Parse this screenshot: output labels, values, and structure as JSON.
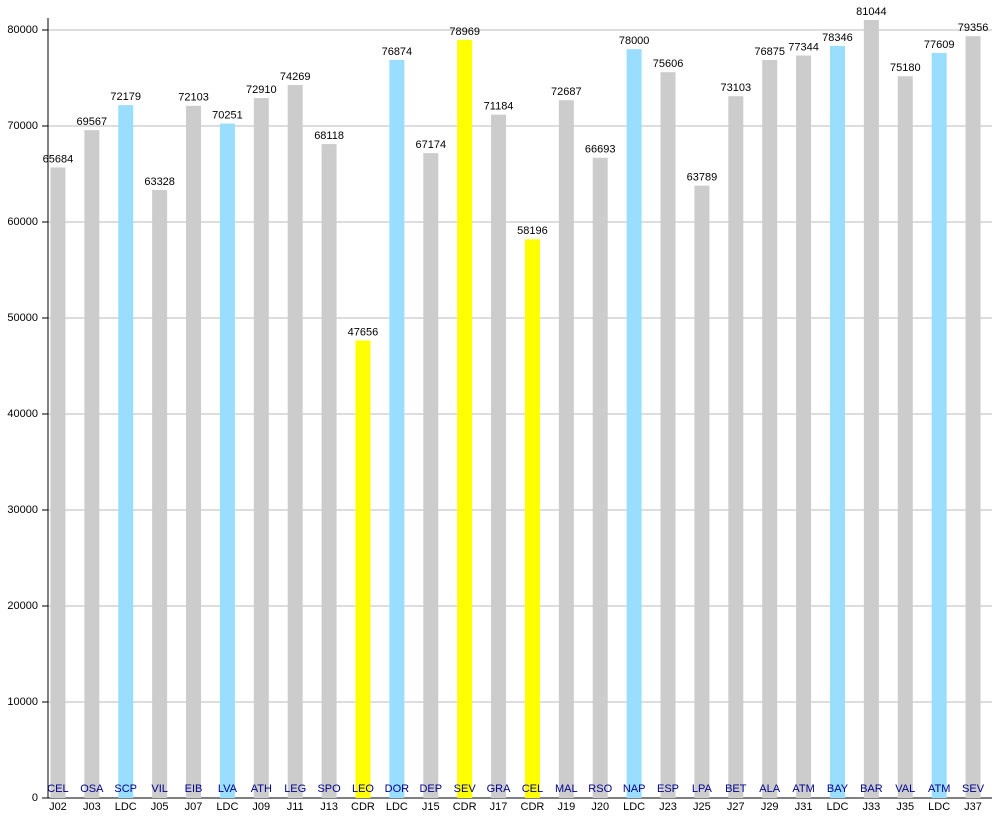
{
  "chart_data": {
    "type": "bar",
    "categories": [
      "J02",
      "J03",
      "LDC",
      "J05",
      "J07",
      "LDC",
      "J09",
      "J11",
      "J13",
      "CDR",
      "LDC",
      "J15",
      "CDR",
      "J17",
      "CDR",
      "J19",
      "J20",
      "LDC",
      "J23",
      "J25",
      "J27",
      "J29",
      "J31",
      "LDC",
      "J33",
      "J35",
      "LDC",
      "J37"
    ],
    "bar_labels": [
      "CEL",
      "OSA",
      "SCP",
      "VIL",
      "EIB",
      "LVA",
      "ATH",
      "LEG",
      "SPO",
      "LEO",
      "DOR",
      "DEP",
      "SEV",
      "GRA",
      "CEL",
      "MAL",
      "RSO",
      "NAP",
      "ESP",
      "LPA",
      "BET",
      "ALA",
      "ATM",
      "BAY",
      "BAR",
      "VAL",
      "ATM",
      "SEV"
    ],
    "values": [
      65684,
      69567,
      72179,
      63328,
      72103,
      70251,
      72910,
      74269,
      68118,
      47656,
      76874,
      67174,
      78969,
      71184,
      58196,
      72687,
      66693,
      78000,
      75606,
      63789,
      73103,
      76875,
      77344,
      78346,
      81044,
      75180,
      77609,
      79356
    ],
    "colors": [
      "#cccccc",
      "#cccccc",
      "#99ddff",
      "#cccccc",
      "#cccccc",
      "#99ddff",
      "#cccccc",
      "#cccccc",
      "#cccccc",
      "#ffff00",
      "#99ddff",
      "#cccccc",
      "#ffff00",
      "#cccccc",
      "#ffff00",
      "#cccccc",
      "#cccccc",
      "#99ddff",
      "#cccccc",
      "#cccccc",
      "#cccccc",
      "#cccccc",
      "#cccccc",
      "#99ddff",
      "#cccccc",
      "#cccccc",
      "#99ddff",
      "#cccccc"
    ],
    "ylim": [
      0,
      81250
    ],
    "yticks": [
      0,
      10000,
      20000,
      30000,
      40000,
      50000,
      60000,
      70000,
      80000
    ],
    "grid": true
  }
}
